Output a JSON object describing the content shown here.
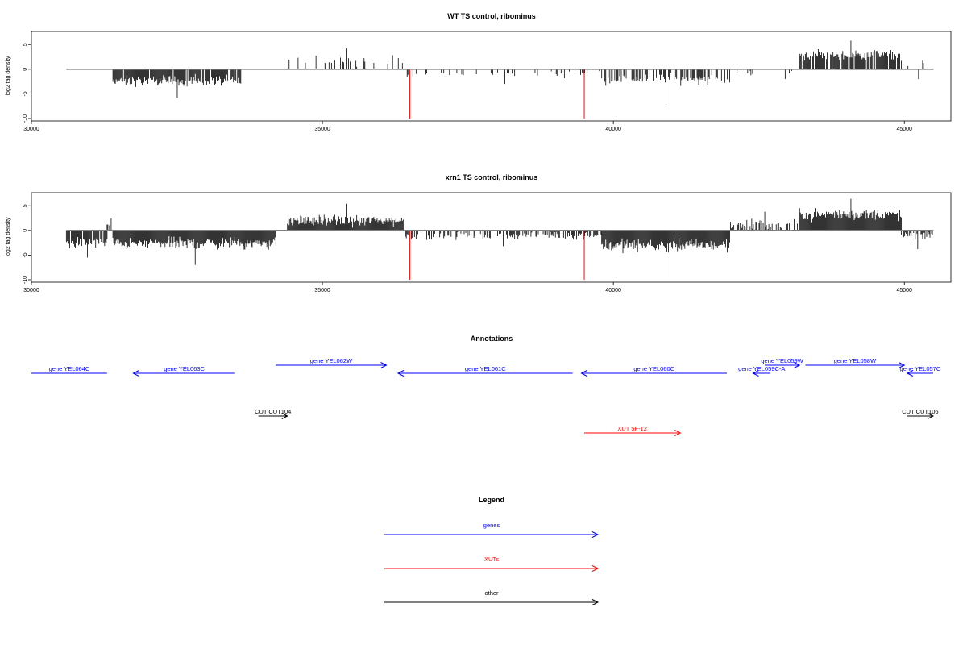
{
  "chart_data": [
    {
      "type": "bar",
      "title": "WT TS control, ribominus",
      "ylabel": "log2 tag density",
      "xlim": [
        30000,
        45800
      ],
      "ylim": [
        -10,
        7
      ],
      "xticks": [
        30000,
        35000,
        40000,
        45000
      ],
      "yticks": [
        -10,
        -5,
        0,
        5
      ],
      "baseline": [
        30600,
        45500
      ],
      "markers": [
        {
          "x": 36500,
          "value": -10,
          "color": "#ff0000"
        },
        {
          "x": 39500,
          "value": -10,
          "color": "#ff0000"
        }
      ],
      "segments": [
        {
          "x0": 30600,
          "x1": 31300,
          "density": 0.06,
          "mean": -1.0,
          "spread": 0.7,
          "spike": -2.6
        },
        {
          "x0": 31400,
          "x1": 33600,
          "density": 0.9,
          "mean": -2.4,
          "spread": 1.0,
          "spike": -5.8
        },
        {
          "x0": 34400,
          "x1": 36400,
          "density": 0.18,
          "mean": 1.8,
          "spread": 0.9,
          "spike": 4.2
        },
        {
          "x0": 36400,
          "x1": 39800,
          "density": 0.12,
          "mean": -1.0,
          "spread": 0.6,
          "spike": -3.0
        },
        {
          "x0": 39800,
          "x1": 42000,
          "density": 0.55,
          "mean": -2.0,
          "spread": 1.0,
          "spike": -7.2
        },
        {
          "x0": 42000,
          "x1": 43100,
          "density": 0.06,
          "mean": -0.8,
          "spread": 0.6,
          "spike": -2.0
        },
        {
          "x0": 43200,
          "x1": 44950,
          "density": 0.8,
          "mean": 2.8,
          "spread": 1.0,
          "spike": 5.8
        },
        {
          "x0": 44950,
          "x1": 45500,
          "density": 0.1,
          "mean": 0.5,
          "spread": 1.2,
          "spike": -2.0
        }
      ]
    },
    {
      "type": "bar",
      "title": "xrn1 TS control, ribominus",
      "ylabel": "log2 tag density",
      "xlim": [
        30000,
        45800
      ],
      "ylim": [
        -10,
        7
      ],
      "xticks": [
        30000,
        35000,
        40000,
        45000
      ],
      "yticks": [
        -10,
        -5,
        0,
        5
      ],
      "baseline": [
        30600,
        45500
      ],
      "markers": [
        {
          "x": 36500,
          "value": -10,
          "color": "#ff0000"
        },
        {
          "x": 39500,
          "value": -10,
          "color": "#ff0000"
        }
      ],
      "segments": [
        {
          "x0": 30600,
          "x1": 31300,
          "density": 0.8,
          "mean": -2.5,
          "spread": 1.0,
          "spike": -5.5
        },
        {
          "x0": 31300,
          "x1": 31400,
          "density": 0.5,
          "mean": 1.2,
          "spread": 0.6,
          "spike": 2.4
        },
        {
          "x0": 31400,
          "x1": 34200,
          "density": 1.0,
          "mean": -2.6,
          "spread": 1.1,
          "spike": -7.0
        },
        {
          "x0": 34400,
          "x1": 36400,
          "density": 1.0,
          "mean": 2.0,
          "spread": 1.0,
          "spike": 5.4
        },
        {
          "x0": 36400,
          "x1": 39800,
          "density": 0.5,
          "mean": -1.0,
          "spread": 0.8,
          "spike": -3.2
        },
        {
          "x0": 39800,
          "x1": 42000,
          "density": 1.0,
          "mean": -3.0,
          "spread": 1.2,
          "spike": -9.5
        },
        {
          "x0": 42000,
          "x1": 43200,
          "density": 0.6,
          "mean": 1.2,
          "spread": 1.3,
          "spike": 3.8
        },
        {
          "x0": 43200,
          "x1": 44950,
          "density": 1.0,
          "mean": 3.2,
          "spread": 1.1,
          "spike": 6.4
        },
        {
          "x0": 44950,
          "x1": 45500,
          "density": 0.7,
          "mean": -1.0,
          "spread": 1.0,
          "spike": -3.8
        }
      ]
    }
  ],
  "annotations": {
    "title": "Annotations",
    "features": [
      {
        "label": "gene YEL064C",
        "color": "#0000ff",
        "x0": 30000,
        "x1": 31300,
        "dir": "none",
        "row": 1
      },
      {
        "label": "gene YEL063C",
        "color": "#0000ff",
        "x0": 31750,
        "x1": 33500,
        "dir": "left",
        "row": 1
      },
      {
        "label": "gene YEL062W",
        "color": "#0000ff",
        "x0": 34200,
        "x1": 36100,
        "dir": "right",
        "row": 0
      },
      {
        "label": "gene YEL061C",
        "color": "#0000ff",
        "x0": 36300,
        "x1": 39300,
        "dir": "left",
        "row": 1
      },
      {
        "label": "gene YEL060C",
        "color": "#0000ff",
        "x0": 39450,
        "x1": 41950,
        "dir": "left",
        "row": 1
      },
      {
        "label": "gene YEL059C-A",
        "color": "#0000ff",
        "x0": 42400,
        "x1": 42700,
        "dir": "left",
        "row": 1
      },
      {
        "label": "gene YEL059W",
        "color": "#0000ff",
        "x0": 42600,
        "x1": 43200,
        "dir": "right",
        "row": 0
      },
      {
        "label": "gene YEL058W",
        "color": "#0000ff",
        "x0": 43300,
        "x1": 45000,
        "dir": "right",
        "row": 0
      },
      {
        "label": "gene YEL057C",
        "color": "#0000ff",
        "x0": 45050,
        "x1": 45750,
        "dir": "left",
        "row": 1
      },
      {
        "label": "CUT CUT104",
        "color": "#000000",
        "x0": 33900,
        "x1": 34400,
        "dir": "right",
        "row": 2
      },
      {
        "label": "CUT CUT106",
        "color": "#000000",
        "x0": 45050,
        "x1": 45800,
        "dir": "right",
        "row": 2
      },
      {
        "label": "XUT 5F-12",
        "color": "#ff0000",
        "x0": 39500,
        "x1": 41150,
        "dir": "right",
        "row": 3
      }
    ]
  },
  "legend": {
    "title": "Legend",
    "items": [
      {
        "label": "genes",
        "color": "#0000ff"
      },
      {
        "label": "XUTs",
        "color": "#ff0000"
      },
      {
        "label": "other",
        "color": "#000000"
      }
    ]
  }
}
